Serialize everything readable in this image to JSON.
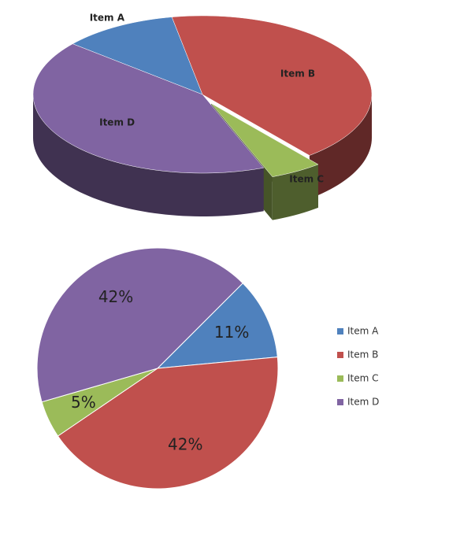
{
  "chart_data": [
    {
      "type": "pie",
      "3d": true,
      "categories": [
        "Item A",
        "Item B",
        "Item C",
        "Item D"
      ],
      "values": [
        11,
        42,
        5,
        42
      ],
      "colors": [
        "#4f81bd",
        "#c0504d",
        "#9bbb59",
        "#8064a2"
      ]
    },
    {
      "type": "pie",
      "categories": [
        "Item A",
        "Item B",
        "Item C",
        "Item D"
      ],
      "values": [
        11,
        42,
        5,
        42
      ],
      "value_labels": [
        "11%",
        "42%",
        "5%",
        "42%"
      ],
      "colors": [
        "#4f81bd",
        "#c0504d",
        "#9bbb59",
        "#8064a2"
      ],
      "legend": "right"
    }
  ]
}
